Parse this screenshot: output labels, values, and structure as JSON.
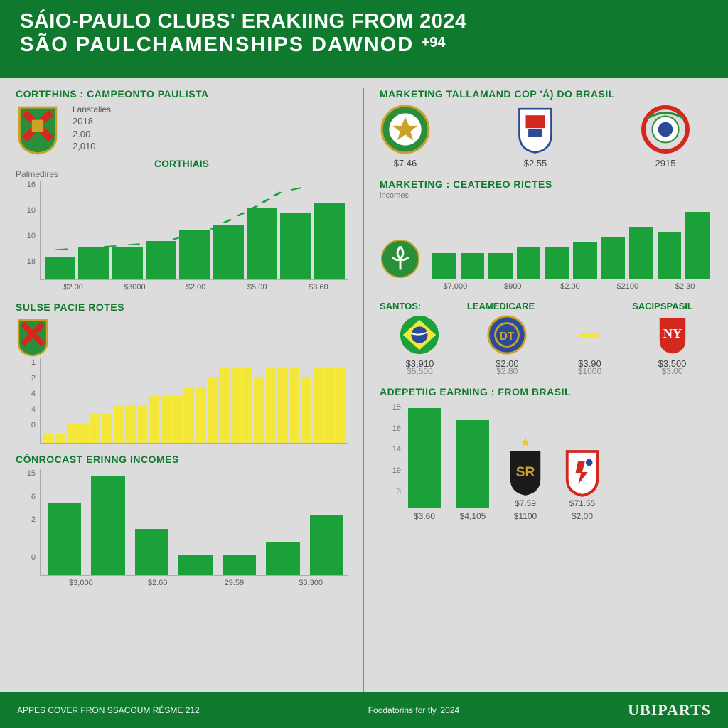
{
  "header": {
    "line1": "SÁIO-PAULO CLUBS' ERAKIING FROM 2024",
    "line2": "SÃO PAULCHAMENSHIPS DAWNOD",
    "badge": "+94"
  },
  "colors": {
    "green": "#1aa13a",
    "dark_green": "#0f7a2e",
    "yellow": "#f5e63a",
    "bg": "#dcdcdc",
    "grid": "#aaaaaa",
    "text": "#555555"
  },
  "left": {
    "panel1": {
      "title": "CORTFHINS : CAMPEONTO PAULISTA",
      "legend_label": "Lanstalies",
      "legend_items": [
        "2018",
        "2.00",
        "2,010"
      ],
      "chart_title": "CORTHIAIS",
      "ylabel": "Palmedires",
      "yticks": [
        "16",
        "10",
        "10",
        "18"
      ],
      "type": "bar",
      "bar_color": "#1aa13a",
      "values": [
        4,
        6,
        6,
        7,
        9,
        10,
        13,
        12,
        14
      ],
      "ylim": [
        0,
        18
      ],
      "xlabels": [
        "$2.00",
        "$3000",
        "$2.00",
        "$5.00",
        "$3.60"
      ],
      "trend_dash": "4 4",
      "trend_color": "#1aa13a",
      "trend_path": [
        [
          0.05,
          0.7
        ],
        [
          0.25,
          0.66
        ],
        [
          0.4,
          0.62
        ],
        [
          0.55,
          0.5
        ],
        [
          0.68,
          0.3
        ],
        [
          0.78,
          0.12
        ],
        [
          0.88,
          0.05
        ]
      ]
    },
    "panel2": {
      "title": "SULSE PACIE ROTES",
      "yticks": [
        "1",
        "2",
        "4",
        "4",
        "0"
      ],
      "type": "bar",
      "bar_color": "#f5e63a",
      "values": [
        1,
        1,
        2,
        2,
        3,
        3,
        4,
        4,
        4,
        5,
        5,
        5,
        6,
        6,
        7,
        8,
        8,
        8,
        7,
        8,
        8,
        8,
        7,
        8,
        8,
        8
      ],
      "ylim": [
        0,
        9
      ]
    },
    "panel3": {
      "title": "CÔNROCAST ERINNG INCOMES",
      "yticks": [
        "15",
        "6",
        "2",
        "",
        "0"
      ],
      "type": "bar",
      "bar_color": "#1aa13a",
      "values": [
        11,
        15,
        7,
        3,
        3,
        5,
        9
      ],
      "ylim": [
        0,
        16
      ],
      "xlabels": [
        "$3,000",
        "$2.60",
        "29.59",
        "$3.300"
      ]
    }
  },
  "right": {
    "panel1": {
      "title": "MARKETING TALLAMAND COP 'Á) DO BRASIL",
      "clubs": [
        {
          "name": "club-a",
          "val": "$7.46",
          "crest": "green-round"
        },
        {
          "name": "club-b",
          "val": "$2.55",
          "crest": "blue-shield"
        },
        {
          "name": "club-c",
          "val": "2915",
          "crest": "red-wreath"
        }
      ]
    },
    "panel2": {
      "title": "MARKETING : CEATEREO RICTES",
      "subtitle": "incomes",
      "crest": "green-fleur",
      "type": "bar",
      "bar_color": "#1aa13a",
      "values": [
        5,
        5,
        5,
        6,
        6,
        7,
        8,
        10,
        9,
        13
      ],
      "ylim": [
        0,
        15
      ],
      "xlabels": [
        "$7.000",
        "$900",
        "$2.00",
        "$2100",
        "$2.30"
      ]
    },
    "panel3": {
      "title_cols": [
        "SANTOS:",
        "LEAMEDICARE",
        "",
        "SACIPSPASIL"
      ],
      "row_crests": [
        "brazil-flag",
        "blue-circle",
        "yellow-bar",
        "red-ny"
      ],
      "vals1": [
        "$3,910",
        "$2.00",
        "$3.90",
        "$3,500"
      ],
      "vals2": [
        "$5,500",
        "$2.80",
        "$1000",
        "$3.00"
      ]
    },
    "panel4": {
      "title": "ADEPETIIG EARNING : FROM BRASIL",
      "yticks": [
        "15",
        "16",
        "14",
        "19",
        "3"
      ],
      "bars": [
        {
          "value": 16,
          "label": "$3.60"
        },
        {
          "value": 14,
          "label": "$4,105"
        }
      ],
      "ylim": [
        0,
        17
      ],
      "bar_color": "#1aa13a",
      "slots": [
        {
          "crest": "sr-black",
          "star": true,
          "val": "$7.59",
          "val2": "$1100"
        },
        {
          "crest": "red-runner",
          "val": "$71.55",
          "val2": "$2,00"
        }
      ]
    }
  },
  "footer": {
    "left": "APPES COVER FRON SSACOUM RÉSME 212",
    "mid": "Foodatorins for tly. 2024",
    "brand": "UBIPARTS"
  }
}
